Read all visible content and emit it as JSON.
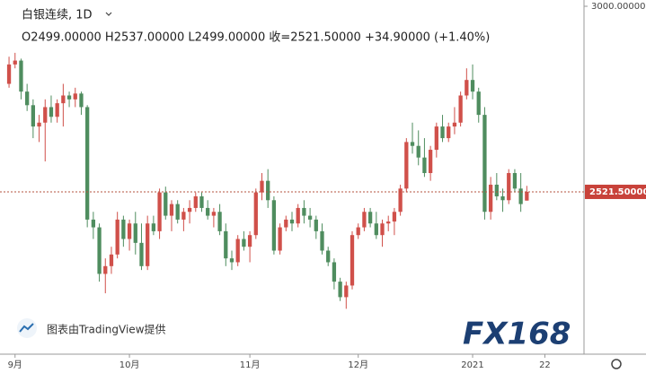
{
  "chart_data": {
    "type": "candlestick",
    "title": "白银连续, 1D",
    "subtitle": "O2499.00000   H2537.00000   L2499.00000   收=2521.50000   +34.90000  (+1.40%)",
    "attribution": "图表由TradingView提供",
    "brand": "FX168",
    "up_color": "#d0504a",
    "down_color": "#4f8d5f",
    "ylim": [
      2103,
      3000
    ],
    "yticks": [
      {
        "value": 3000,
        "label": "3000.00000"
      }
    ],
    "last_price": {
      "value": 2521.5,
      "label": "2521.50000"
    },
    "xlim": [
      -1.5,
      95.5
    ],
    "xticks": [
      {
        "value": 1,
        "label": "9月"
      },
      {
        "value": 20,
        "label": "10月"
      },
      {
        "value": 40,
        "label": "11月"
      },
      {
        "value": 58,
        "label": "12月"
      },
      {
        "value": 77,
        "label": "2021"
      },
      {
        "value": 89,
        "label": "22"
      }
    ],
    "ohlc": [
      [
        2800,
        2870,
        2790,
        2850
      ],
      [
        2850,
        2880,
        2840,
        2860
      ],
      [
        2860,
        2865,
        2760,
        2780
      ],
      [
        2780,
        2800,
        2730,
        2745
      ],
      [
        2745,
        2760,
        2660,
        2690
      ],
      [
        2690,
        2720,
        2650,
        2700
      ],
      [
        2700,
        2760,
        2600,
        2740
      ],
      [
        2740,
        2770,
        2700,
        2715
      ],
      [
        2715,
        2760,
        2700,
        2750
      ],
      [
        2750,
        2800,
        2690,
        2770
      ],
      [
        2770,
        2780,
        2740,
        2760
      ],
      [
        2760,
        2790,
        2740,
        2775
      ],
      [
        2775,
        2780,
        2720,
        2740
      ],
      [
        2740,
        2745,
        2430,
        2450
      ],
      [
        2450,
        2470,
        2400,
        2430
      ],
      [
        2430,
        2440,
        2290,
        2310
      ],
      [
        2310,
        2350,
        2260,
        2330
      ],
      [
        2330,
        2380,
        2310,
        2360
      ],
      [
        2360,
        2470,
        2350,
        2450
      ],
      [
        2450,
        2460,
        2380,
        2400
      ],
      [
        2400,
        2450,
        2370,
        2440
      ],
      [
        2440,
        2470,
        2360,
        2390
      ],
      [
        2390,
        2440,
        2320,
        2330
      ],
      [
        2330,
        2460,
        2320,
        2440
      ],
      [
        2440,
        2460,
        2410,
        2420
      ],
      [
        2420,
        2530,
        2400,
        2520
      ],
      [
        2520,
        2535,
        2450,
        2460
      ],
      [
        2460,
        2500,
        2420,
        2490
      ],
      [
        2490,
        2500,
        2440,
        2450
      ],
      [
        2450,
        2480,
        2420,
        2470
      ],
      [
        2470,
        2500,
        2440,
        2480
      ],
      [
        2480,
        2520,
        2470,
        2510
      ],
      [
        2510,
        2520,
        2470,
        2480
      ],
      [
        2480,
        2500,
        2450,
        2460
      ],
      [
        2460,
        2480,
        2430,
        2470
      ],
      [
        2470,
        2490,
        2410,
        2420
      ],
      [
        2420,
        2440,
        2330,
        2350
      ],
      [
        2350,
        2370,
        2320,
        2340
      ],
      [
        2340,
        2410,
        2330,
        2400
      ],
      [
        2400,
        2420,
        2370,
        2380
      ],
      [
        2380,
        2420,
        2340,
        2410
      ],
      [
        2410,
        2530,
        2400,
        2520
      ],
      [
        2520,
        2570,
        2500,
        2550
      ],
      [
        2550,
        2580,
        2480,
        2500
      ],
      [
        2500,
        2510,
        2360,
        2370
      ],
      [
        2370,
        2440,
        2360,
        2430
      ],
      [
        2430,
        2460,
        2420,
        2450
      ],
      [
        2450,
        2470,
        2420,
        2440
      ],
      [
        2440,
        2490,
        2430,
        2480
      ],
      [
        2480,
        2500,
        2440,
        2460
      ],
      [
        2460,
        2480,
        2430,
        2450
      ],
      [
        2450,
        2460,
        2400,
        2420
      ],
      [
        2420,
        2440,
        2360,
        2370
      ],
      [
        2370,
        2380,
        2330,
        2340
      ],
      [
        2340,
        2350,
        2270,
        2290
      ],
      [
        2290,
        2300,
        2240,
        2250
      ],
      [
        2250,
        2290,
        2220,
        2280
      ],
      [
        2280,
        2420,
        2270,
        2410
      ],
      [
        2410,
        2440,
        2400,
        2430
      ],
      [
        2430,
        2480,
        2420,
        2470
      ],
      [
        2470,
        2480,
        2430,
        2440
      ],
      [
        2440,
        2470,
        2400,
        2410
      ],
      [
        2410,
        2450,
        2380,
        2440
      ],
      [
        2440,
        2460,
        2420,
        2445
      ],
      [
        2445,
        2480,
        2410,
        2470
      ],
      [
        2470,
        2540,
        2460,
        2530
      ],
      [
        2530,
        2660,
        2520,
        2650
      ],
      [
        2650,
        2700,
        2620,
        2640
      ],
      [
        2640,
        2680,
        2590,
        2610
      ],
      [
        2610,
        2660,
        2560,
        2570
      ],
      [
        2570,
        2640,
        2550,
        2630
      ],
      [
        2630,
        2700,
        2610,
        2690
      ],
      [
        2690,
        2720,
        2650,
        2660
      ],
      [
        2660,
        2700,
        2650,
        2690
      ],
      [
        2690,
        2740,
        2670,
        2700
      ],
      [
        2700,
        2780,
        2690,
        2770
      ],
      [
        2770,
        2840,
        2760,
        2810
      ],
      [
        2810,
        2850,
        2760,
        2780
      ],
      [
        2780,
        2790,
        2700,
        2720
      ],
      [
        2720,
        2740,
        2450,
        2470
      ],
      [
        2470,
        2560,
        2450,
        2540
      ],
      [
        2540,
        2570,
        2500,
        2510
      ],
      [
        2510,
        2530,
        2470,
        2500
      ],
      [
        2500,
        2580,
        2490,
        2570
      ],
      [
        2570,
        2580,
        2520,
        2530
      ],
      [
        2530,
        2570,
        2470,
        2490
      ],
      [
        2499,
        2537,
        2499,
        2521.5
      ]
    ]
  }
}
